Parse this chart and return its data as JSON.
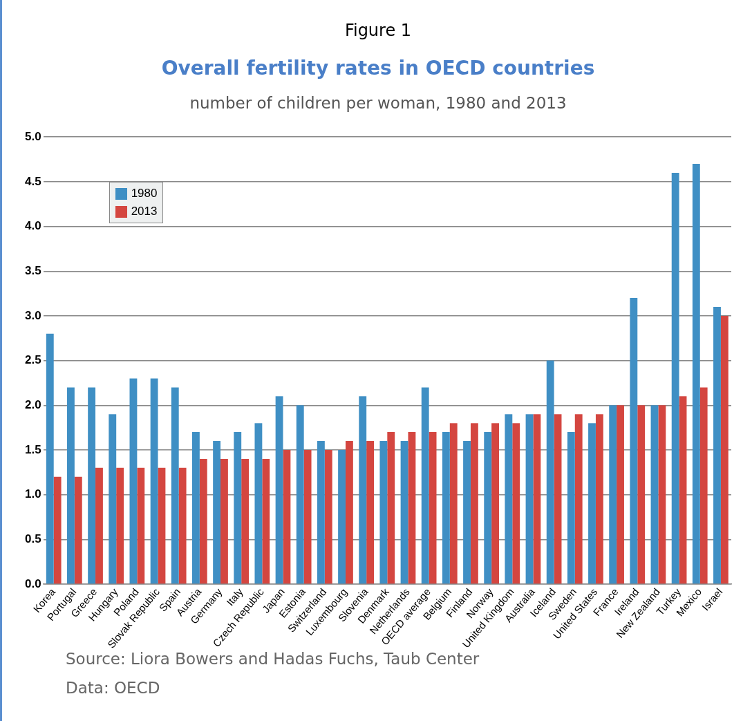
{
  "chart_data": {
    "type": "bar",
    "title": "Overall fertility rates in OECD countries",
    "subtitle": "number of children per woman, 1980 and 2013",
    "annotations": [
      "Figure 1",
      "Source: Liora Bowers and Hadas Fuchs, Taub Center",
      "Data: OECD"
    ],
    "categories": [
      "Korea",
      "Portugal",
      "Greece",
      "Hungary",
      "Poland",
      "Slovak Republic",
      "Spain",
      "Austria",
      "Germany",
      "Italy",
      "Czech Republic",
      "Japan",
      "Estonia",
      "Switzerland",
      "Luxembourg",
      "Slovenia",
      "Denmark",
      "Netherlands",
      "OECD average",
      "Belgium",
      "Finland",
      "Norway",
      "United Kingdom",
      "Australia",
      "Iceland",
      "Sweden",
      "United States",
      "France",
      "Ireland",
      "New Zealand",
      "Turkey",
      "Mexico",
      "Israel"
    ],
    "series": [
      {
        "name": "1980",
        "color": "#3f8fc4",
        "values": [
          2.8,
          2.2,
          2.2,
          1.9,
          2.3,
          2.3,
          2.2,
          1.7,
          1.6,
          1.7,
          1.8,
          2.1,
          2.0,
          1.6,
          1.5,
          2.1,
          1.6,
          1.6,
          2.2,
          1.7,
          1.6,
          1.7,
          1.9,
          1.9,
          2.5,
          1.7,
          1.8,
          2.0,
          3.2,
          2.0,
          4.6,
          4.7,
          3.1
        ]
      },
      {
        "name": "2013",
        "color": "#d44640",
        "values": [
          1.2,
          1.2,
          1.3,
          1.3,
          1.3,
          1.3,
          1.3,
          1.4,
          1.4,
          1.4,
          1.4,
          1.5,
          1.5,
          1.5,
          1.6,
          1.6,
          1.7,
          1.7,
          1.7,
          1.8,
          1.8,
          1.8,
          1.8,
          1.9,
          1.9,
          1.9,
          1.9,
          2.0,
          2.0,
          2.0,
          2.1,
          2.2,
          3.0
        ]
      }
    ],
    "ylim": [
      0,
      5
    ],
    "yticks": [
      {
        "value": 0,
        "label": "0.0"
      },
      {
        "value": 0.5,
        "label": "0.5"
      },
      {
        "value": 1,
        "label": "1.0"
      },
      {
        "value": 1.5,
        "label": "1.5"
      },
      {
        "value": 2,
        "label": "2.0"
      },
      {
        "value": 2.5,
        "label": "2.5"
      },
      {
        "value": 3,
        "label": "3.0"
      },
      {
        "value": 3.5,
        "label": "3.5"
      },
      {
        "value": 4,
        "label": "4.0"
      },
      {
        "value": 4.5,
        "label": "4.5"
      },
      {
        "value": 5,
        "label": "5.0"
      }
    ],
    "grid": "y",
    "legend": "top left"
  }
}
